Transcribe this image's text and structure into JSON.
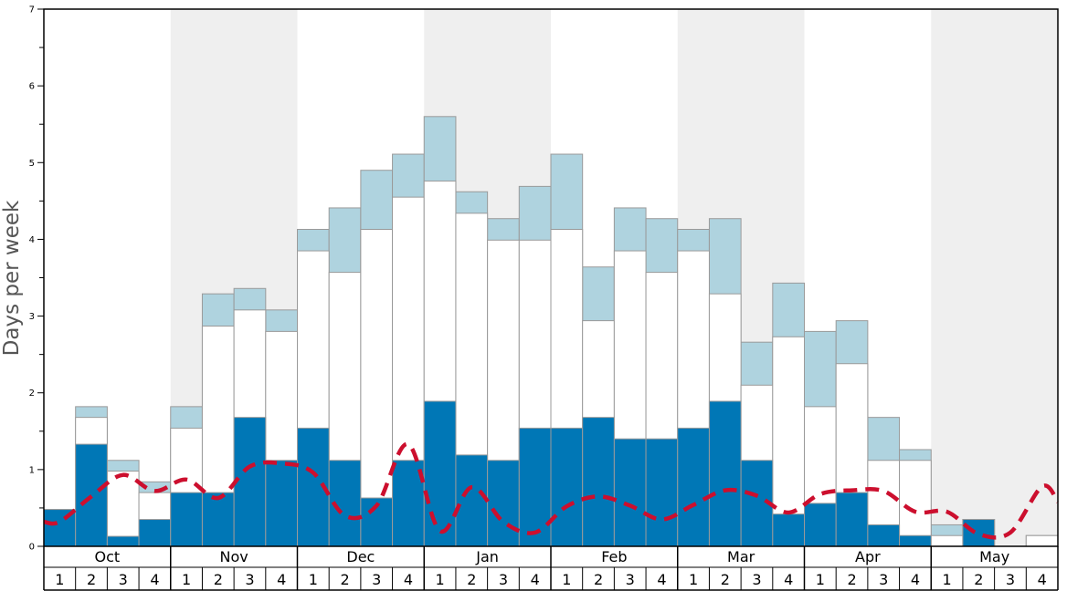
{
  "chart_data": {
    "type": "bar",
    "ylabel": "Days per week",
    "ylim": [
      0,
      7
    ],
    "y_ticks": [
      "0",
      "1",
      "2",
      "3",
      "4",
      "5",
      "6",
      "7"
    ],
    "months": [
      "Oct",
      "Nov",
      "Dec",
      "Jan",
      "Feb",
      "Mar",
      "Apr",
      "May"
    ],
    "week_labels": [
      "1",
      "2",
      "3",
      "4"
    ],
    "shaded_months": [
      "Nov",
      "Jan",
      "Mar",
      "May"
    ],
    "colors": {
      "dark_blue": "#0077b6",
      "white": "#ffffff",
      "light_blue": "#afd3df",
      "dashed_line": "#cc0f2e",
      "shade": "#efefef",
      "bar_outline": "#9a9a9a"
    },
    "series": [
      {
        "values": [
          0.48,
          1.33,
          0.13,
          0.35,
          0.7,
          0.7,
          1.68,
          1.12,
          1.54,
          1.12,
          0.63,
          1.12,
          1.89,
          1.19,
          1.12,
          1.54,
          1.54,
          1.68,
          1.4,
          1.4,
          1.54,
          1.89,
          1.12,
          0.42,
          0.56,
          0.7,
          0.28,
          0.14,
          0.0,
          0.35,
          0.0,
          0.0
        ]
      },
      {
        "values": [
          0.48,
          1.68,
          0.98,
          0.7,
          1.54,
          2.87,
          3.08,
          2.8,
          3.85,
          3.57,
          4.13,
          4.55,
          4.76,
          4.34,
          3.99,
          3.99,
          4.13,
          2.94,
          3.85,
          3.57,
          3.85,
          3.29,
          2.1,
          2.73,
          1.82,
          2.38,
          1.12,
          1.12,
          0.14,
          0.35,
          0.0,
          0.14
        ]
      },
      {
        "values": [
          0.48,
          1.82,
          1.12,
          0.84,
          1.82,
          3.29,
          3.36,
          3.08,
          4.13,
          4.41,
          4.9,
          5.11,
          5.6,
          4.62,
          4.27,
          4.69,
          5.11,
          3.64,
          4.41,
          4.27,
          4.13,
          4.27,
          2.66,
          3.43,
          2.8,
          2.94,
          1.68,
          1.26,
          0.28,
          0.35,
          0.0,
          0.14
        ]
      },
      {
        "values": [
          0.32,
          0.65,
          0.93,
          0.72,
          0.87,
          0.63,
          1.04,
          1.08,
          0.96,
          0.4,
          0.53,
          1.33,
          0.2,
          0.77,
          0.32,
          0.18,
          0.52,
          0.65,
          0.53,
          0.35,
          0.54,
          0.73,
          0.66,
          0.44,
          0.68,
          0.73,
          0.72,
          0.45,
          0.45,
          0.16,
          0.18,
          0.78
        ]
      }
    ],
    "extra_line_end": 0.58
  }
}
